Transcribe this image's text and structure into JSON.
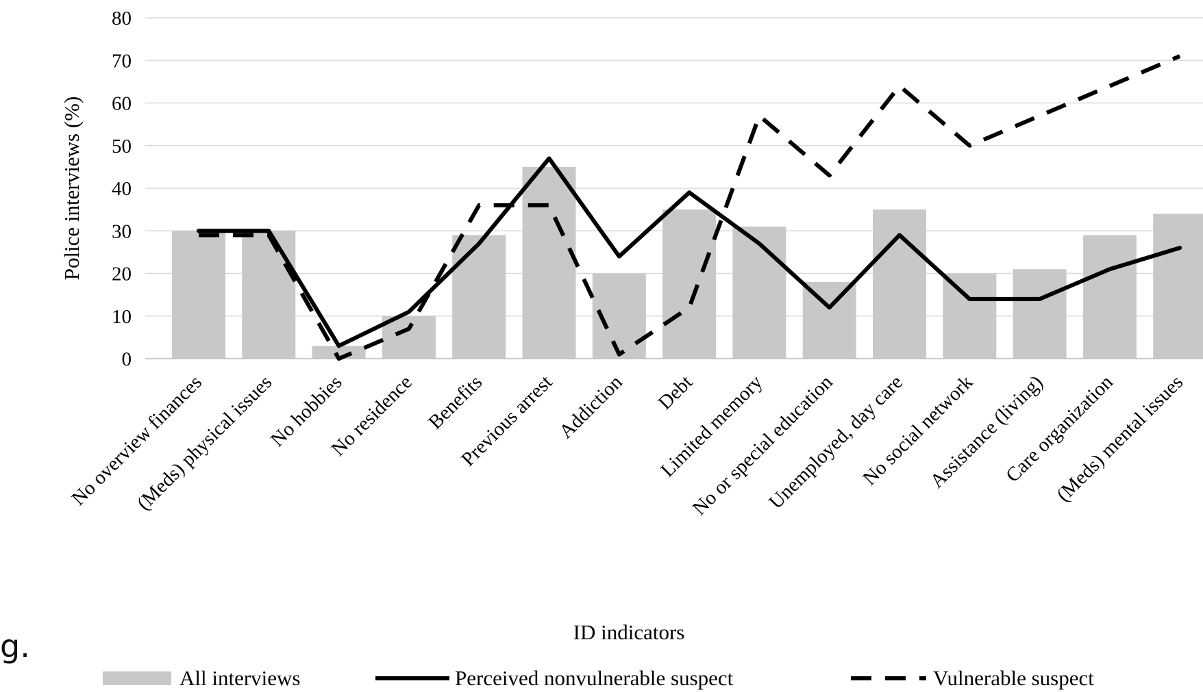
{
  "fragment_text": "g.",
  "chart_data": {
    "type": "bar",
    "xlabel": "ID indicators",
    "ylabel": "Police interviews (%)",
    "ylim": [
      0,
      80
    ],
    "yticks": [
      0,
      10,
      20,
      30,
      40,
      50,
      60,
      70,
      80
    ],
    "grid": true,
    "legend_position": "bottom",
    "categories": [
      "No overview finances",
      "(Meds) physical issues",
      "No hobbies",
      "No residence",
      "Benefits",
      "Previous arrest",
      "Addiction",
      "Debt",
      "Limited memory",
      "No or special education",
      "Unemployed, day care",
      "No social network",
      "Assistance (living)",
      "Care organization",
      "(Meds) mental issues"
    ],
    "series": [
      {
        "name": "All interviews",
        "type": "bar",
        "color": "#c8c8c8",
        "values": [
          30,
          30,
          3,
          10,
          29,
          45,
          20,
          35,
          31,
          18,
          35,
          20,
          21,
          29,
          34
        ]
      },
      {
        "name": "Perceived nonvulnerable suspect",
        "type": "line",
        "style": "solid",
        "color": "#000000",
        "values": [
          30,
          30,
          3,
          11,
          27,
          47,
          24,
          39,
          27,
          12,
          29,
          14,
          14,
          21,
          26
        ]
      },
      {
        "name": "Vulnerable suspect",
        "type": "line",
        "style": "dashed",
        "color": "#000000",
        "values": [
          29,
          29,
          0,
          7,
          36,
          36,
          1,
          12,
          57,
          43,
          64,
          50,
          57,
          64,
          71
        ]
      }
    ]
  }
}
